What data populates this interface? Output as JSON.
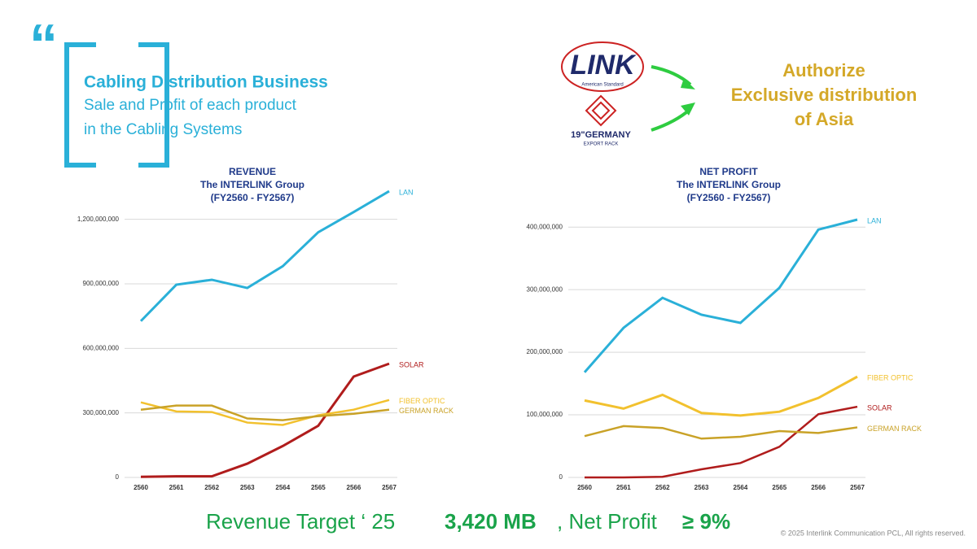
{
  "header": {
    "title": "Cabling Distribution Business",
    "lines": [
      "Sale and Profit of each product",
      "in the Cabling Systems"
    ]
  },
  "logos": {
    "link": "LINK",
    "link_sub": "American Standard",
    "germany": "19\"GERMANY",
    "germany_sub": "EXPORT RACK"
  },
  "authorize": [
    "Authorize",
    "Exclusive distribution",
    "of Asia"
  ],
  "footer": {
    "target": "Revenue Target ‘ 25",
    "amount": "3,420 MB",
    "profit": ", Net Profit",
    "percent": "≥ 9%",
    "copyright": "© 2025 Interlink Communication PCL, All rights reserved."
  },
  "chart_data": [
    {
      "type": "line",
      "title": "REVENUE",
      "subtitle": [
        "The INTERLINK Group",
        "(FY2560 - FY2567)"
      ],
      "categories": [
        "2560",
        "2561",
        "2562",
        "2563",
        "2564",
        "2565",
        "2566",
        "2567"
      ],
      "ylim": [
        0,
        1350000000
      ],
      "yticks": [
        0,
        {
          "value": 300000000,
          "label": "300,000,000"
        },
        {
          "value": 600000000,
          "label": "600,000,000"
        },
        {
          "value": 900000000,
          "label": "900,000,000"
        },
        {
          "value": 1200000000,
          "label": "1,200,000,000"
        }
      ],
      "grid": true,
      "series": [
        {
          "name": "LAN",
          "color": "#2ab0d8",
          "values": [
            727000000,
            896000000,
            919000000,
            881000000,
            982000000,
            1140000000,
            1234000000,
            1331000000
          ]
        },
        {
          "name": "SOLAR",
          "color": "#b01c1c",
          "values": [
            3000000,
            5000000,
            5000000,
            64000000,
            146000000,
            240000000,
            469000000,
            529000000
          ]
        },
        {
          "name": "FIBER OPTIC",
          "color": "#f2c12e",
          "values": [
            349000000,
            307000000,
            304000000,
            255000000,
            244000000,
            289000000,
            315000000,
            360000000
          ]
        },
        {
          "name": "GERMAN RACK",
          "color": "#c9a227",
          "values": [
            315000000,
            334000000,
            334000000,
            274000000,
            266000000,
            285000000,
            296000000,
            315000000
          ]
        }
      ]
    },
    {
      "type": "line",
      "title": "NET PROFIT",
      "subtitle": [
        "The INTERLINK Group",
        "(FY2560 - FY2567)"
      ],
      "categories": [
        "2560",
        "2561",
        "2562",
        "2563",
        "2564",
        "2565",
        "2566",
        "2567"
      ],
      "ylim": [
        0,
        425000000
      ],
      "yticks": [
        0,
        {
          "value": 100000000,
          "label": "100,000,000"
        },
        {
          "value": 200000000,
          "label": "200,000,000"
        },
        {
          "value": 300000000,
          "label": "300,000,000"
        },
        {
          "value": 400000000,
          "label": "400,000,000"
        }
      ],
      "grid": true,
      "series": [
        {
          "name": "LAN",
          "color": "#2ab0d8",
          "values": [
            168000000,
            239000000,
            287000000,
            260000000,
            247000000,
            303000000,
            396000000,
            412000000
          ]
        },
        {
          "name": "FIBER OPTIC",
          "color": "#f2c12e",
          "values": [
            123000000,
            110000000,
            132000000,
            103000000,
            99000000,
            105000000,
            127000000,
            161000000
          ]
        },
        {
          "name": "SOLAR",
          "color": "#b01c1c",
          "values": [
            0,
            0,
            1000000,
            13000000,
            23000000,
            49000000,
            101000000,
            113000000
          ]
        },
        {
          "name": "GERMAN RACK",
          "color": "#c9a227",
          "values": [
            66000000,
            82000000,
            79000000,
            62000000,
            65000000,
            74000000,
            71000000,
            80000000
          ]
        }
      ]
    }
  ]
}
